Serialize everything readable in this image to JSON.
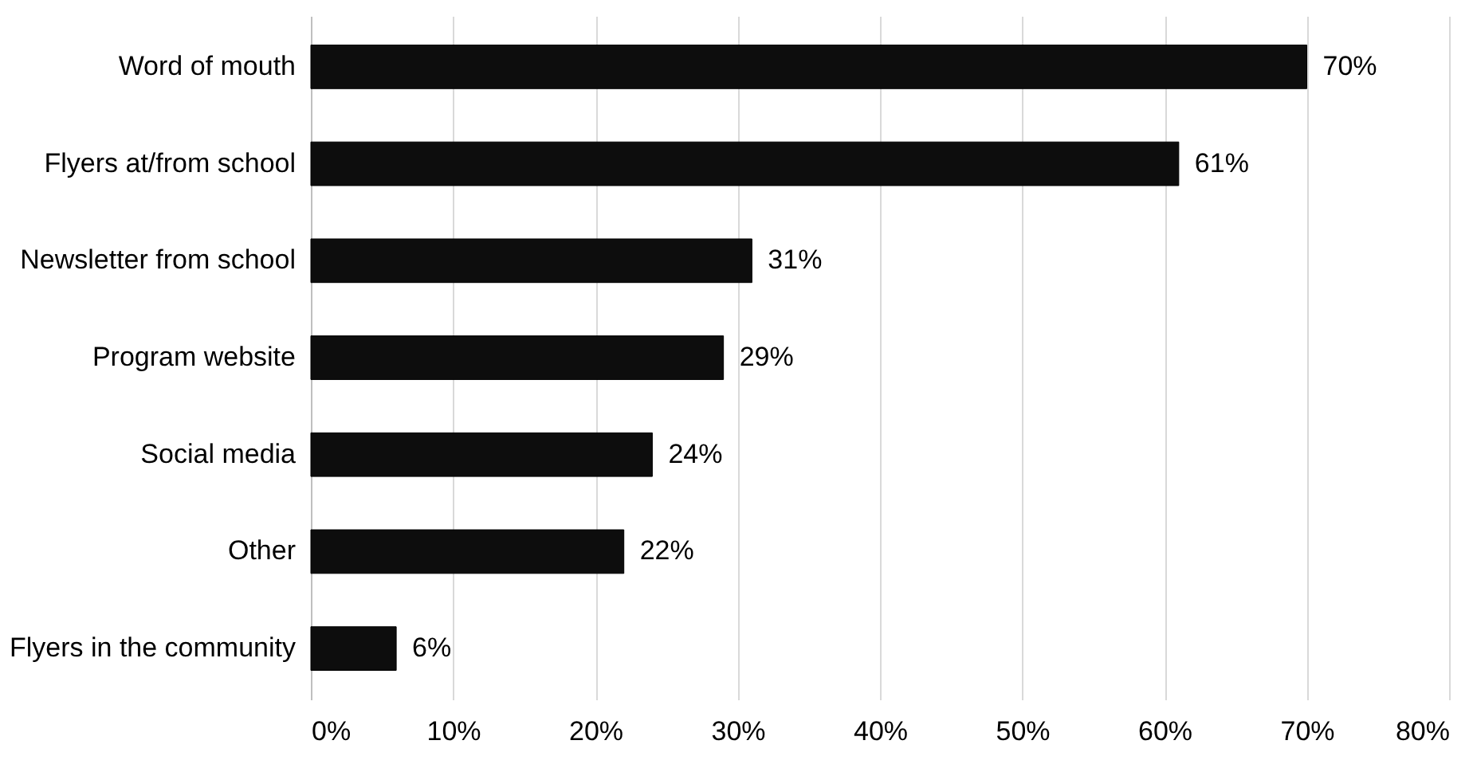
{
  "chart_data": {
    "type": "bar",
    "orientation": "horizontal",
    "categories": [
      "Word of mouth",
      "Flyers at/from school",
      "Newsletter from school",
      "Program website",
      "Social media",
      "Other",
      "Flyers in the community"
    ],
    "values": [
      70,
      61,
      31,
      29,
      24,
      22,
      6
    ],
    "value_labels": [
      "70%",
      "61%",
      "31%",
      "29%",
      "24%",
      "22%",
      "6%"
    ],
    "color": "#0d0d0d",
    "xlim": [
      0,
      80
    ],
    "xticks": [
      {
        "value": 0,
        "label": "0%"
      },
      {
        "value": 10,
        "label": "10%"
      },
      {
        "value": 20,
        "label": "20%"
      },
      {
        "value": 30,
        "label": "30%"
      },
      {
        "value": 40,
        "label": "40%"
      },
      {
        "value": 50,
        "label": "50%"
      },
      {
        "value": 60,
        "label": "60%"
      },
      {
        "value": 70,
        "label": "70%"
      },
      {
        "value": 80,
        "label": "80%"
      }
    ],
    "grid": "x"
  }
}
